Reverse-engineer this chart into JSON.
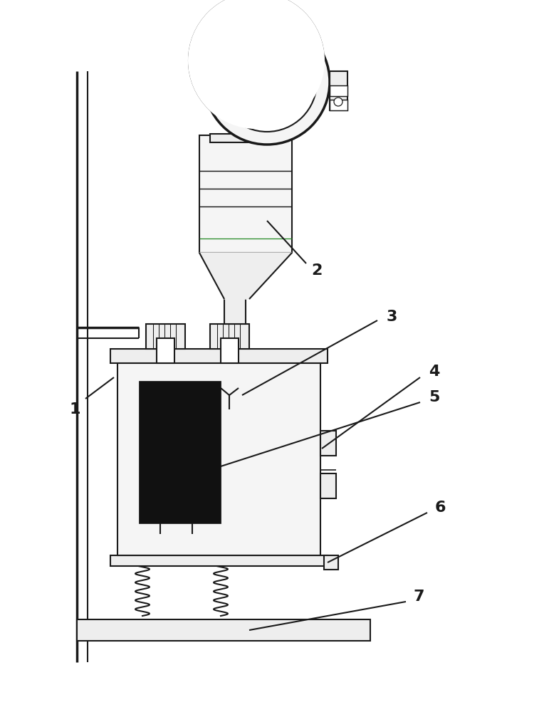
{
  "background_color": "#ffffff",
  "line_color": "#1a1a1a",
  "lw": 1.5,
  "lw_thick": 2.5,
  "label_fontsize": 16,
  "label_fontweight": "bold"
}
